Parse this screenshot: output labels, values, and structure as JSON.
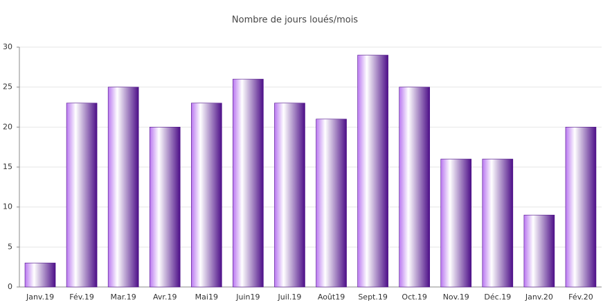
{
  "chart_data": {
    "type": "bar",
    "title": "Nombre de jours loués/mois",
    "categories": [
      "Janv.19",
      "Fév.19",
      "Mar.19",
      "Avr.19",
      "Mai19",
      "Juin19",
      "Juil.19",
      "Août19",
      "Sept.19",
      "Oct.19",
      "Nov.19",
      "Déc.19",
      "Janv.20",
      "Fév.20"
    ],
    "values": [
      3,
      23,
      25,
      20,
      23,
      26,
      23,
      21,
      29,
      25,
      16,
      16,
      9,
      20
    ],
    "colors": [
      "#b977f0",
      "#ffffff",
      "#4d0f88"
    ],
    "ylim": [
      0,
      30
    ],
    "yticks": [
      0,
      5,
      10,
      15,
      20,
      25,
      30
    ],
    "grid": true
  }
}
